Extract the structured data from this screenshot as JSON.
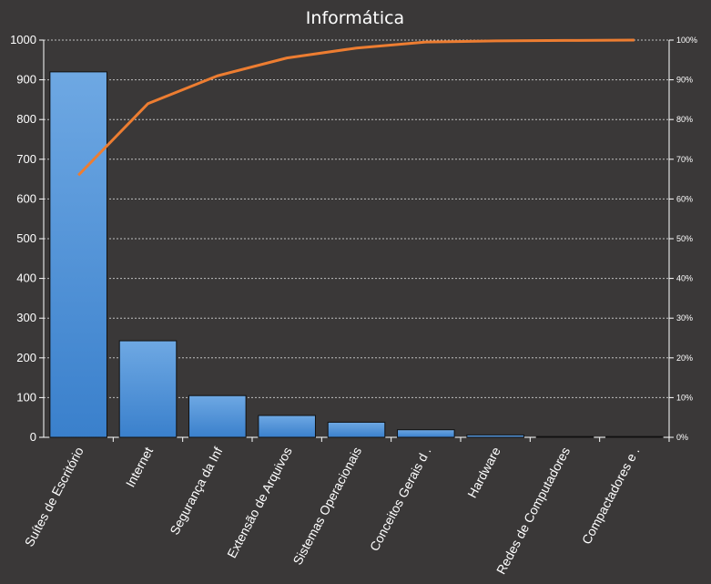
{
  "chart_data": {
    "type": "bar",
    "title": "Informática",
    "xlabel": "",
    "ylabel": "",
    "categories": [
      "Suítes de Escritório",
      "Internet",
      "Segurança da Inf",
      "Extensão de Arquivos",
      "Sistemas Operacionais",
      "Conceitos Gerais d .",
      "Hardware",
      "Redes de Computadores",
      "Compactadores e ."
    ],
    "series": [
      {
        "type": "bar",
        "values": [
          920,
          243,
          105,
          55,
          38,
          19,
          6,
          2,
          2
        ]
      },
      {
        "type": "line",
        "axis": "right",
        "values": [
          66,
          84,
          91,
          95.5,
          98,
          99.5,
          99.8,
          99.9,
          100
        ]
      }
    ],
    "ylim": [
      0,
      1000
    ],
    "yticks": [
      0,
      100,
      200,
      300,
      400,
      500,
      600,
      700,
      800,
      900,
      1000
    ],
    "y2lim": [
      0,
      100
    ],
    "y2ticks": [
      "0%",
      "10%",
      "20%",
      "30%",
      "40%",
      "50%",
      "60%",
      "70%",
      "80%",
      "90%",
      "100%"
    ],
    "grid": true,
    "legend": "none",
    "colors": {
      "background": "#3a3838",
      "bar": "#4a90d9",
      "line": "#ed7d31",
      "grid": "#bfbfbf"
    }
  }
}
